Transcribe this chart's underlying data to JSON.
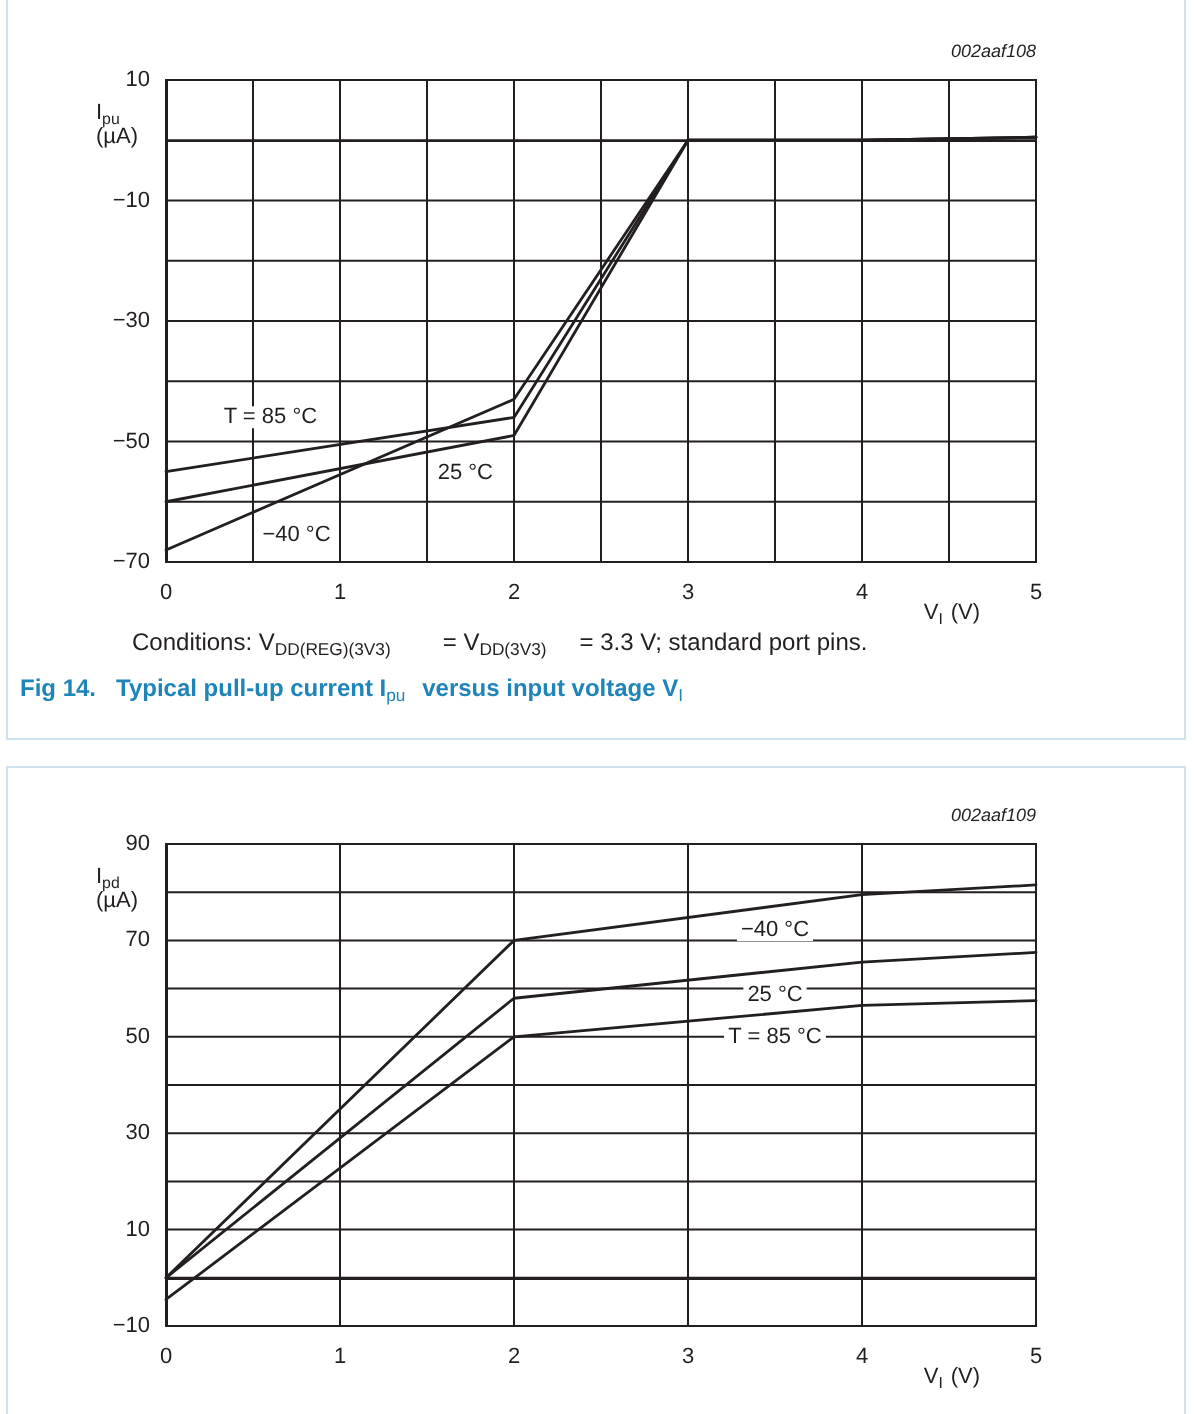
{
  "chart_data": [
    {
      "type": "line",
      "title": "Fig 14.   Typical pull-up current I$_{pu}$ versus input voltage V$_{I}$",
      "xlabel": "V$_{I}$ (V)",
      "ylabel": "I$_{pu}$ (µA)",
      "annotations": [
        "002aaf108",
        "Conditions: V$_{DD(REG)(3V3)}$ = V$_{DD(3V3)}$ = 3.3 V; standard port pins."
      ],
      "x": [
        0,
        2,
        3,
        4,
        5
      ],
      "series": [
        {
          "name": "T = 85 °C",
          "color": "#231f20",
          "values": [
            -55,
            -46,
            0,
            0,
            0.5
          ]
        },
        {
          "name": "25 °C",
          "color": "#231f20",
          "values": [
            -60,
            -49,
            0,
            0,
            0.5
          ]
        },
        {
          "name": "−40 °C",
          "color": "#231f20",
          "values": [
            -68,
            -43,
            0,
            0,
            0.5
          ]
        }
      ],
      "xlim": [
        0,
        5
      ],
      "xticks": [
        0,
        {
          "value": 0.5,
          "label": null
        },
        1,
        {
          "value": 1.5,
          "label": null
        },
        2,
        {
          "value": 2.5,
          "label": null
        },
        3,
        {
          "value": 3.5,
          "label": null
        },
        4,
        {
          "value": 4.5,
          "label": null
        },
        5
      ],
      "ylim": [
        -70,
        10
      ],
      "yticks": [
        {
          "value": -70,
          "label": "−70"
        },
        {
          "value": -60,
          "label": null
        },
        {
          "value": -50,
          "label": "−50"
        },
        {
          "value": -40,
          "label": null
        },
        {
          "value": -30,
          "label": "−30"
        },
        {
          "value": -20,
          "label": null
        },
        {
          "value": -10,
          "label": "−10"
        },
        {
          "value": 0,
          "label": null
        },
        10
      ],
      "grid": true,
      "marker": "none",
      "line_style": "solid"
    },
    {
      "type": "line",
      "xlabel": "V$_{I}$ (V)",
      "ylabel": "I$_{pd}$ (µA)",
      "annotations": [
        "002aaf109"
      ],
      "x": [
        0,
        2,
        4,
        5
      ],
      "series": [
        {
          "name": "T = 85 °C",
          "color": "#231f20",
          "values": [
            -4.5,
            50,
            56.5,
            57.5
          ]
        },
        {
          "name": "25 °C",
          "color": "#231f20",
          "values": [
            0,
            58,
            65.5,
            67.5
          ]
        },
        {
          "name": "−40 °C",
          "color": "#231f20",
          "values": [
            0,
            70,
            79.5,
            81.5
          ]
        }
      ],
      "xlim": [
        0,
        5
      ],
      "xticks": [
        0,
        1,
        2,
        3,
        4,
        5
      ],
      "ylim": [
        -10,
        90
      ],
      "yticks": [
        {
          "value": -10,
          "label": "−10"
        },
        {
          "value": 0,
          "label": null
        },
        10,
        {
          "value": 20,
          "label": null
        },
        30,
        {
          "value": 40,
          "label": null
        },
        50,
        {
          "value": 60,
          "label": null
        },
        70,
        {
          "value": 80,
          "label": null
        },
        90
      ],
      "grid": true,
      "marker": "none",
      "line_style": "solid"
    }
  ]
}
